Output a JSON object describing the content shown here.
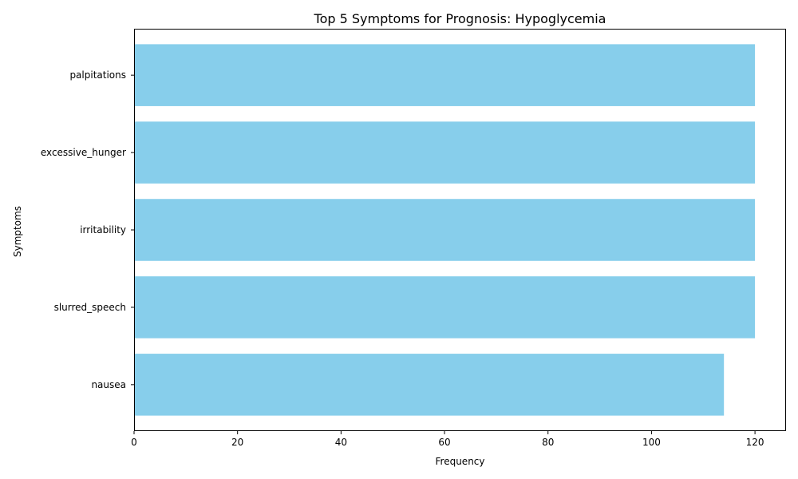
{
  "chart_data": {
    "type": "bar",
    "orientation": "horizontal",
    "title": "Top 5 Symptoms for Prognosis: Hypoglycemia",
    "xlabel": "Frequency",
    "ylabel": "Symptoms",
    "categories": [
      "palpitations",
      "excessive_hunger",
      "irritability",
      "slurred_speech",
      "nausea"
    ],
    "values": [
      120,
      120,
      120,
      120,
      114
    ],
    "xlim": [
      0,
      126
    ],
    "xticks": [
      0,
      20,
      40,
      60,
      80,
      100,
      120
    ],
    "grid": false,
    "bar_color": "#87CEEB"
  }
}
